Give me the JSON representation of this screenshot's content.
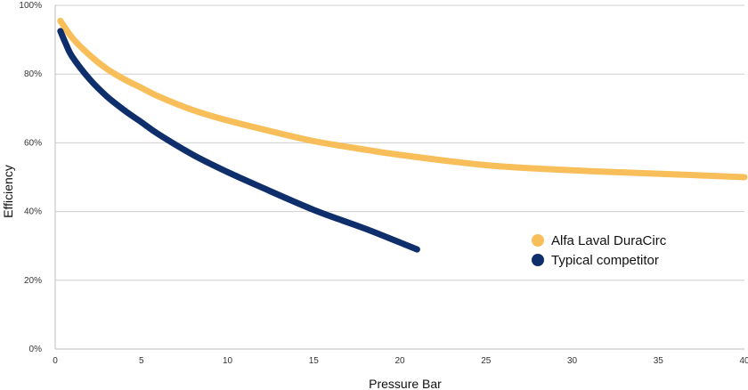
{
  "chart_data": {
    "type": "line",
    "title": "",
    "xlabel": "Pressure Bar",
    "ylabel": "Efficiency",
    "xlim": [
      0,
      40
    ],
    "ylim": [
      0,
      100
    ],
    "x_ticks": [
      0,
      5,
      10,
      15,
      20,
      25,
      30,
      35,
      40
    ],
    "y_ticks": [
      0,
      20,
      40,
      60,
      80,
      100
    ],
    "y_tick_labels": [
      "0%",
      "20%",
      "40%",
      "60%",
      "80%",
      "100%"
    ],
    "grid": "horizontal",
    "legend_position": "right",
    "series": [
      {
        "name": "Alfa Laval DuraCirc",
        "color": "#F7BE5A",
        "x": [
          0.3,
          1,
          2,
          3,
          4,
          5,
          6,
          8,
          10,
          12,
          15,
          18,
          20,
          25,
          30,
          35,
          40
        ],
        "y": [
          95.5,
          90.5,
          85.5,
          81.5,
          78.5,
          76,
          73.5,
          69.5,
          66.5,
          64,
          60.5,
          58,
          56.5,
          53.5,
          52,
          51,
          50
        ]
      },
      {
        "name": "Typical competitor",
        "color": "#0E2F6B",
        "x": [
          0.3,
          0.6,
          1,
          2,
          3,
          4,
          5,
          6,
          8,
          10,
          12,
          15,
          18,
          20,
          21
        ],
        "y": [
          92.5,
          89,
          85,
          78.5,
          73.5,
          69.5,
          66,
          62.5,
          56.5,
          51.5,
          47,
          40.5,
          35,
          31,
          29
        ]
      }
    ]
  }
}
